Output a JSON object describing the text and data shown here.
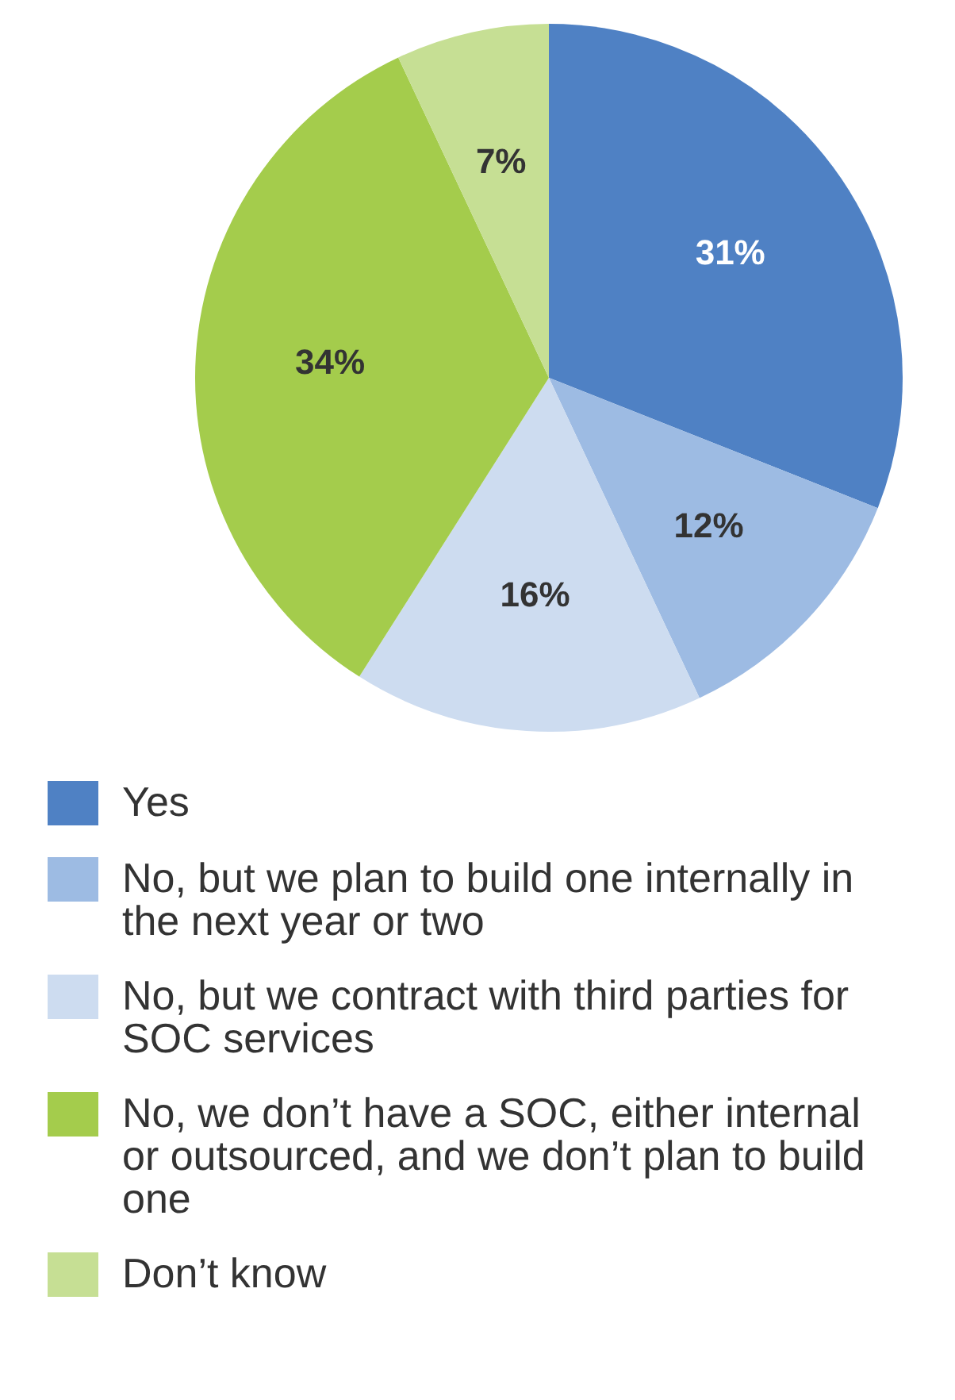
{
  "chart_data": {
    "type": "pie",
    "categories": [
      "Yes",
      "No, but we plan to build one internally in the next year or two",
      "No, but we contract with third parties for SOC services",
      "No, we don’t have a SOC, either internal or outsourced, and we don’t plan to build one",
      "Don’t know"
    ],
    "values": [
      31,
      12,
      16,
      34,
      7
    ],
    "colors": [
      "#4f81c4",
      "#9dbbe3",
      "#cddcf0",
      "#a4cc4c",
      "#c6df94"
    ],
    "value_labels": [
      "31%",
      "12%",
      "16%",
      "34%",
      "7%"
    ],
    "legend": "bottom"
  }
}
